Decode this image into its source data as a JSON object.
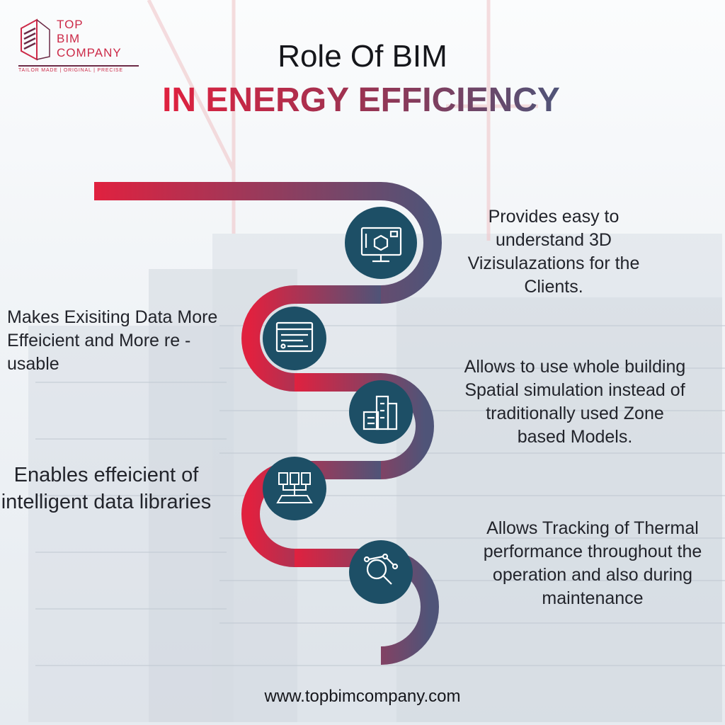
{
  "brand": {
    "logo_lines": [
      "TOP",
      "BIM",
      "COMPANY"
    ],
    "tagline": "TAILOR MADE | ORIGINAL | PRECISE"
  },
  "title": "Role Of BIM",
  "subtitle": "IN ENERGY EFFICIENCY",
  "steps": [
    {
      "icon": "3d-monitor-icon",
      "text": "Provides easy to understand 3D Vizisulazations for the Clients."
    },
    {
      "icon": "data-window-icon",
      "text": "Makes Exisiting Data More Effeicient and More re - usable"
    },
    {
      "icon": "buildings-icon",
      "text": "Allows to use whole building Spatial simulation instead of traditionally used Zone based Models."
    },
    {
      "icon": "data-library-icon",
      "text": "Enables effeicient of intelligent data libraries"
    },
    {
      "icon": "analytics-search-icon",
      "text": "Allows Tracking of Thermal performance throughout the operation and also during maintenance"
    }
  ],
  "website": "www.topbimcompany.com",
  "colors": {
    "accent_red": "#e0213f",
    "accent_slate": "#4f5478",
    "icon_circle": "#1d4f66"
  }
}
